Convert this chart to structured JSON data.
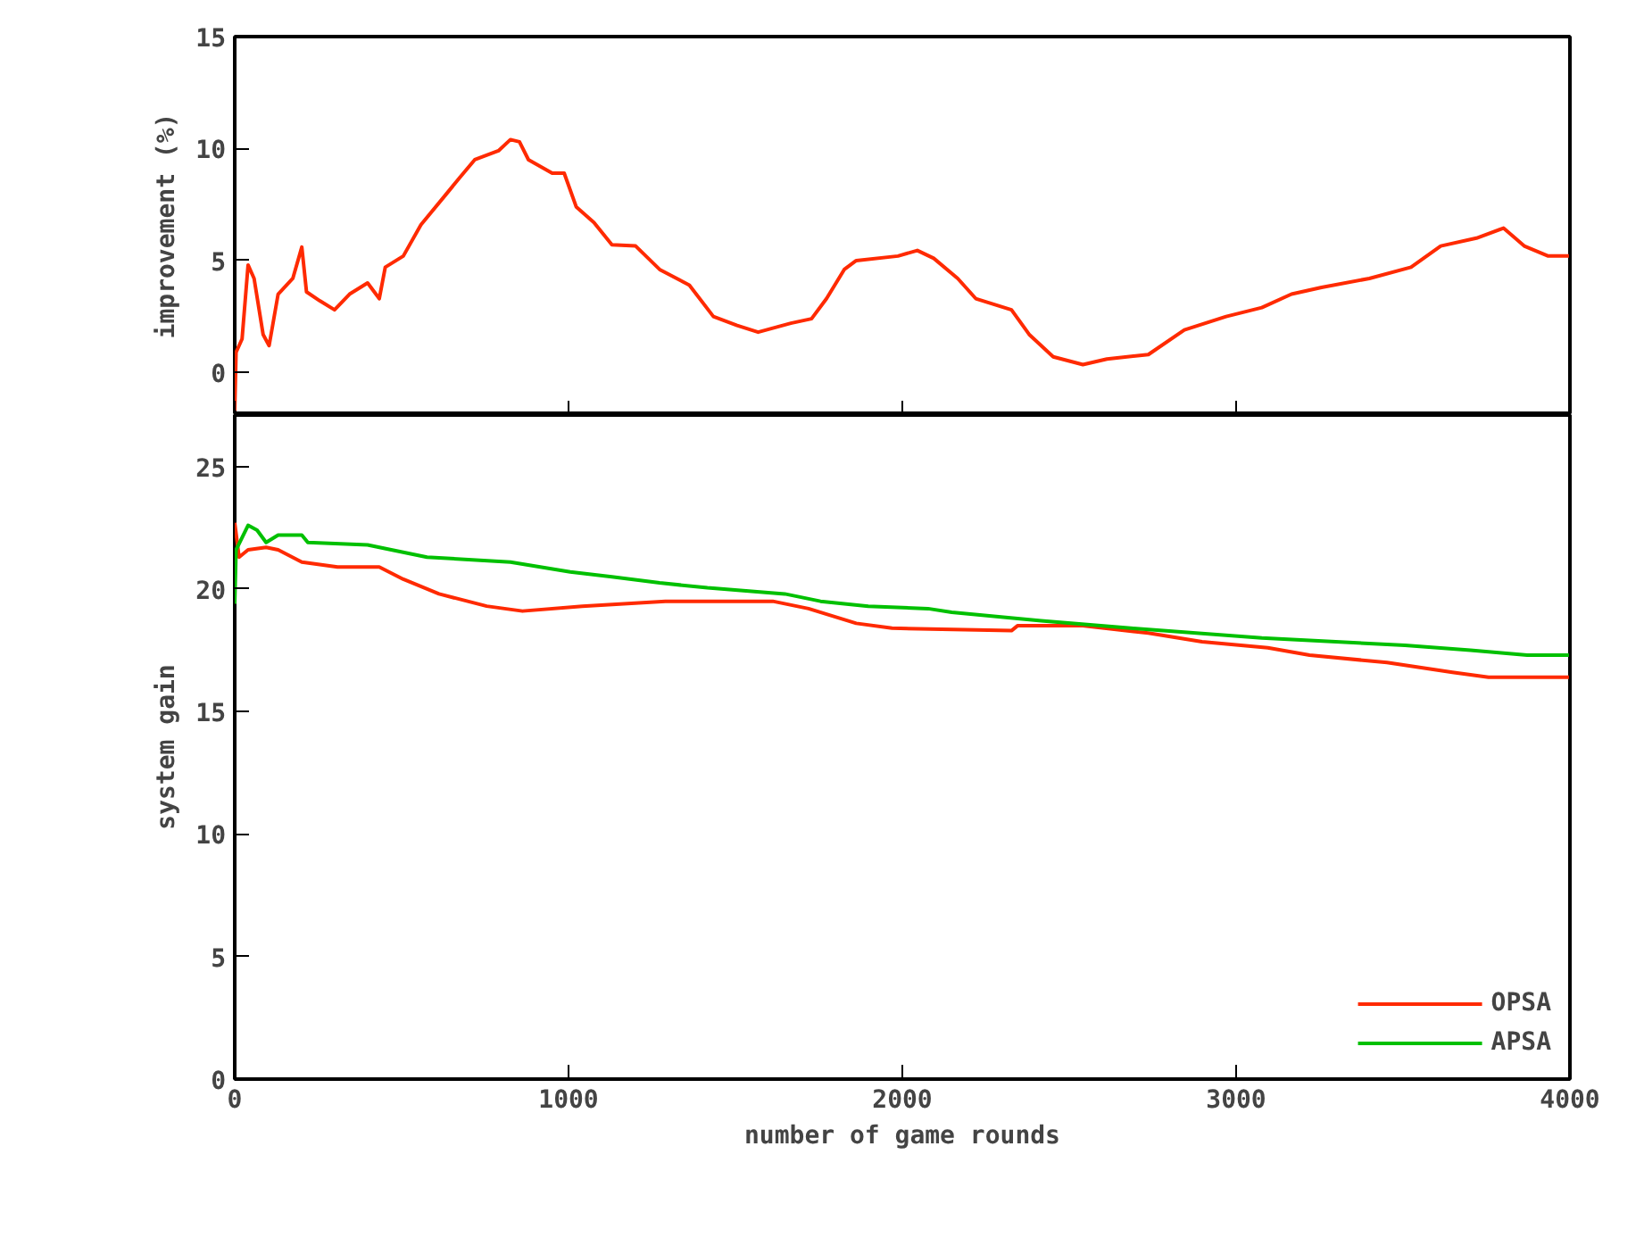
{
  "chart_data": [
    {
      "type": "line",
      "ylabel": "improvement (%)",
      "xlim": [
        0,
        4000
      ],
      "xticks": [
        0,
        1000,
        2000,
        3000,
        4000
      ],
      "ylim": [
        -1.9,
        15
      ],
      "yticks": [
        0,
        5,
        10,
        15
      ],
      "tick_labels": "y",
      "grid": false,
      "legend": false,
      "series": [
        {
          "color": "#ff2a00",
          "x": [
            0,
            4,
            22,
            40,
            58,
            85,
            103,
            130,
            174,
            201,
            215,
            255,
            299,
            344,
            398,
            433,
            451,
            505,
            558,
            630,
            674,
            719,
            790,
            826,
            853,
            880,
            951,
            987,
            1023,
            1076,
            1130,
            1201,
            1273,
            1362,
            1434,
            1505,
            1568,
            1666,
            1728,
            1773,
            1826,
            1862,
            1987,
            2045,
            2094,
            2166,
            2220,
            2327,
            2380,
            2452,
            2541,
            2613,
            2737,
            2845,
            2970,
            3077,
            3166,
            3256,
            3399,
            3524,
            3613,
            3720,
            3801,
            3863,
            3935,
            3997
          ],
          "values": [
            -1.7,
            0.9,
            1.5,
            4.8,
            4.2,
            1.7,
            1.2,
            3.5,
            4.2,
            5.6,
            3.6,
            3.2,
            2.8,
            3.5,
            4.0,
            3.3,
            4.7,
            5.2,
            6.6,
            7.9,
            8.7,
            9.5,
            9.9,
            10.4,
            10.3,
            9.5,
            8.9,
            8.9,
            7.4,
            6.7,
            5.7,
            5.65,
            4.6,
            3.9,
            2.5,
            2.1,
            1.8,
            2.2,
            2.4,
            3.3,
            4.6,
            5.0,
            5.2,
            5.45,
            5.1,
            4.2,
            3.3,
            2.8,
            1.7,
            0.7,
            0.35,
            0.6,
            0.8,
            1.9,
            2.5,
            2.9,
            3.5,
            3.8,
            4.2,
            4.7,
            5.65,
            6.0,
            6.45,
            5.65,
            5.2,
            5.2
          ]
        }
      ]
    },
    {
      "type": "line",
      "xlabel": "number of game rounds",
      "ylabel": "system gain",
      "xlim": [
        0,
        4000
      ],
      "xticks": [
        0,
        1000,
        2000,
        3000,
        4000
      ],
      "ylim": [
        0,
        27.1
      ],
      "yticks": [
        0,
        5,
        10,
        15,
        20,
        25
      ],
      "grid": false,
      "legend": "bottom right",
      "series": [
        {
          "name": "OPSA",
          "color": "#ff2a00",
          "x": [
            0,
            13,
            40,
            94,
            130,
            201,
            308,
            433,
            505,
            612,
            755,
            862,
            1041,
            1290,
            1612,
            1719,
            1862,
            1969,
            2327,
            2345,
            2541,
            2737,
            2898,
            3095,
            3220,
            3452,
            3648,
            3756,
            3997
          ],
          "values": [
            22.7,
            21.3,
            21.6,
            21.7,
            21.6,
            21.1,
            20.9,
            20.9,
            20.4,
            19.8,
            19.3,
            19.1,
            19.3,
            19.5,
            19.5,
            19.2,
            18.6,
            18.4,
            18.3,
            18.5,
            18.5,
            18.2,
            17.85,
            17.6,
            17.3,
            17.0,
            16.6,
            16.4,
            16.4
          ]
        },
        {
          "name": "APSA",
          "color": "#00c000",
          "x": [
            0,
            4,
            40,
            67,
            94,
            130,
            201,
            219,
            398,
            469,
            576,
            826,
            1005,
            1130,
            1273,
            1416,
            1648,
            1755,
            1898,
            2077,
            2148,
            2416,
            2684,
            3077,
            3506,
            3702,
            3872,
            3997
          ],
          "values": [
            19.4,
            21.6,
            22.6,
            22.4,
            21.9,
            22.2,
            22.2,
            21.9,
            21.8,
            21.6,
            21.3,
            21.1,
            20.7,
            20.5,
            20.25,
            20.05,
            19.8,
            19.5,
            19.3,
            19.2,
            19.05,
            18.7,
            18.4,
            18.0,
            17.7,
            17.5,
            17.3,
            17.3
          ]
        }
      ]
    }
  ]
}
